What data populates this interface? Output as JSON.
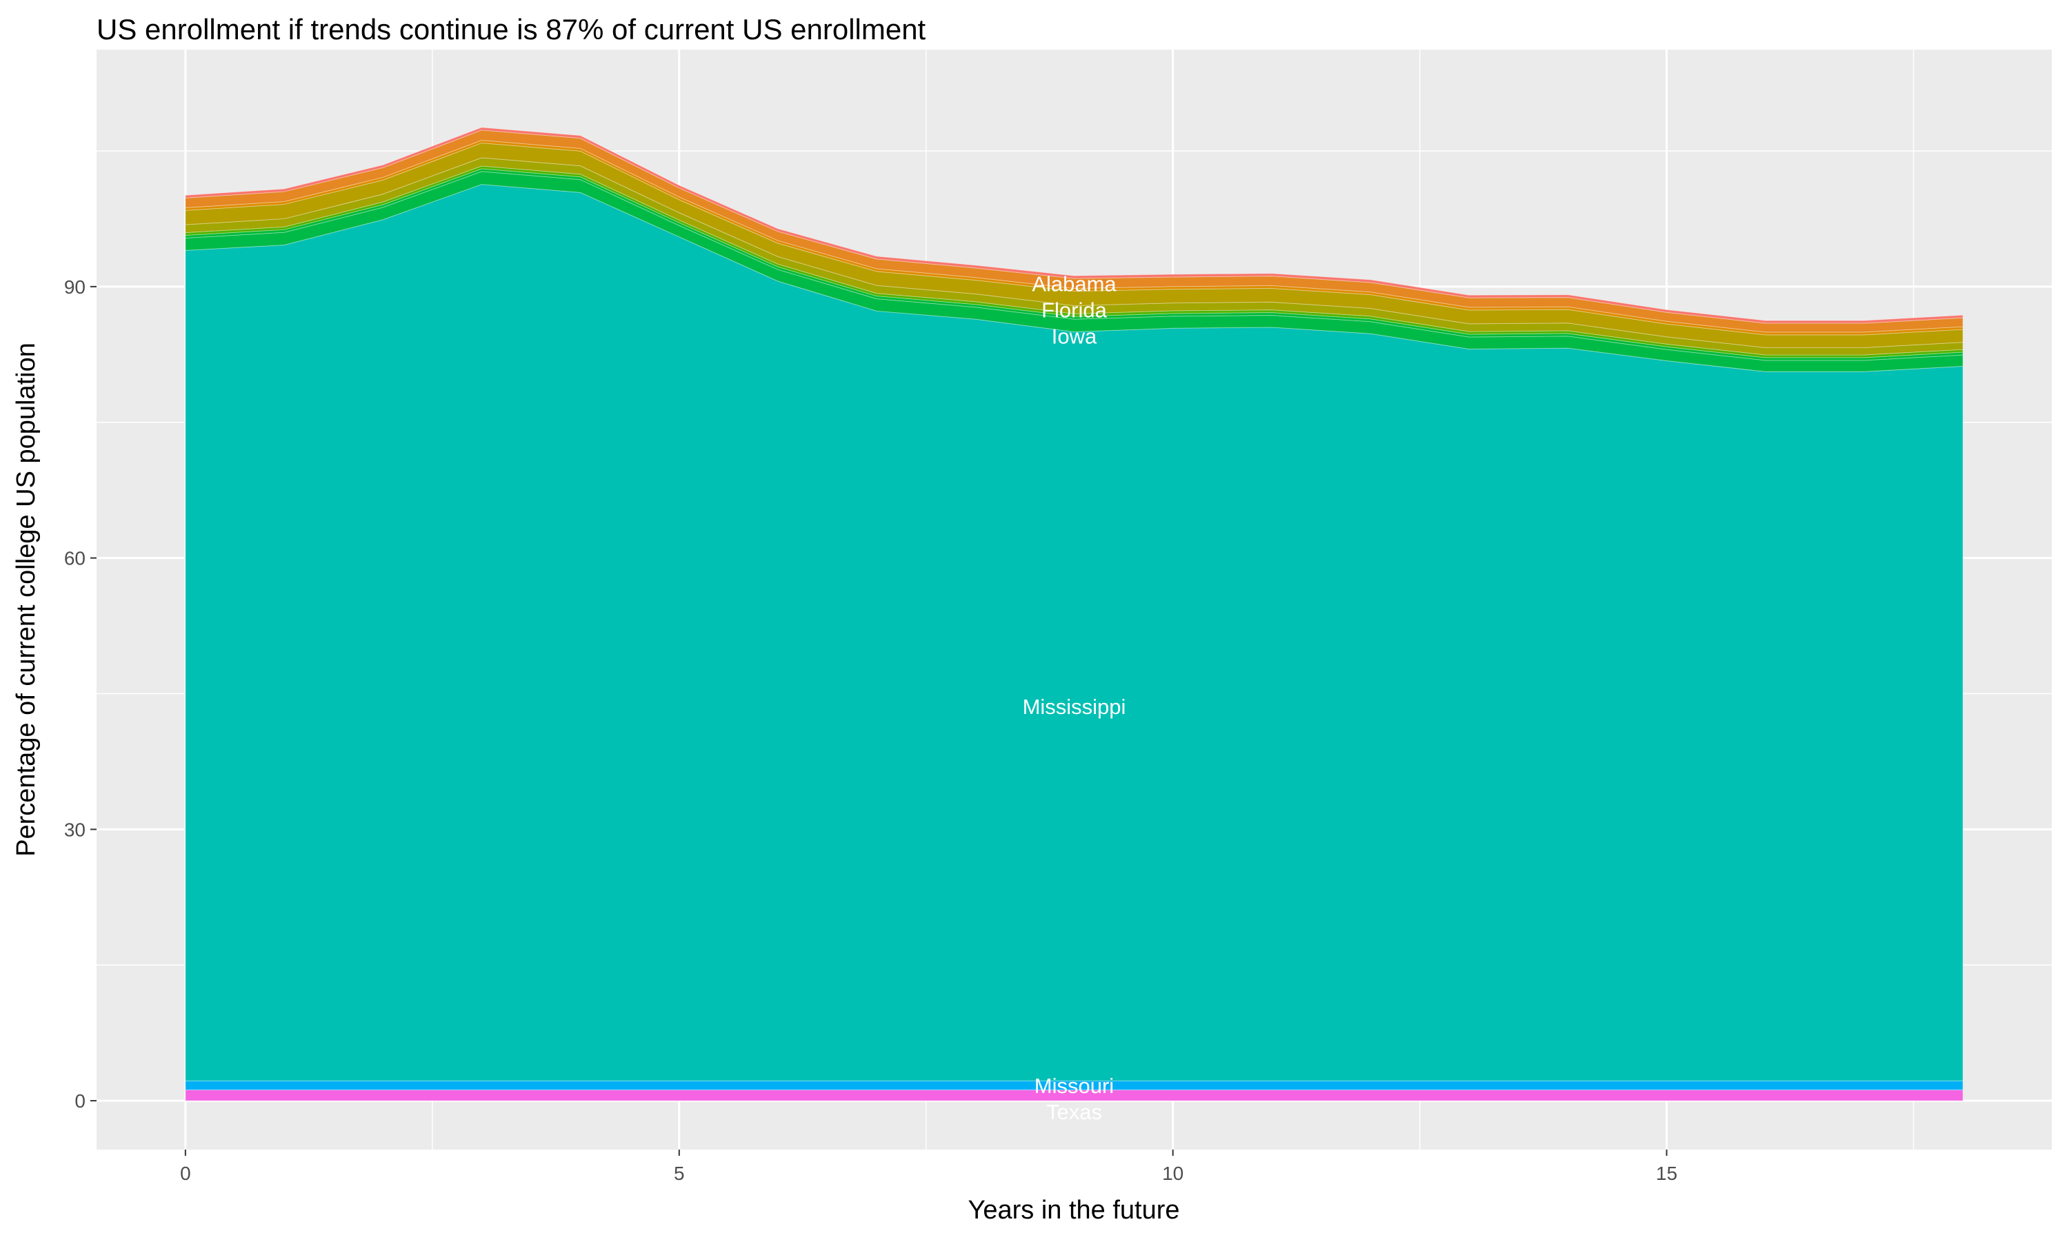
{
  "chart_data": {
    "type": "area",
    "stacked": true,
    "title": "US enrollment if trends continue is 87% of current US enrollment",
    "xlabel": "Years in the future",
    "ylabel": "Percentage of current college US population",
    "xlim": [
      -0.9,
      18.9
    ],
    "ylim": [
      -5.4,
      116.2
    ],
    "xticks": [
      0,
      5,
      10,
      15
    ],
    "yticks": [
      0,
      30,
      60,
      90
    ],
    "grid": true,
    "legend": "none",
    "background": "#EBEBEB",
    "x": [
      0,
      1,
      2,
      3,
      4,
      5,
      6,
      7,
      8,
      9,
      10,
      11,
      12,
      13,
      14,
      15,
      16,
      17,
      18
    ],
    "series": [
      {
        "name": "Texas",
        "color": "#F564E3",
        "values": [
          1.2,
          1.2,
          1.2,
          1.2,
          1.2,
          1.2,
          1.2,
          1.2,
          1.2,
          1.2,
          1.2,
          1.2,
          1.2,
          1.2,
          1.2,
          1.2,
          1.2,
          1.2,
          1.2
        ]
      },
      {
        "name": "Missouri",
        "color": "#00B0F6",
        "values": [
          1.0,
          1.0,
          1.0,
          1.0,
          1.0,
          1.0,
          1.0,
          1.0,
          1.0,
          1.0,
          1.0,
          1.0,
          1.0,
          1.0,
          1.0,
          1.0,
          1.0,
          1.0,
          1.0
        ]
      },
      {
        "name": "Mississippi",
        "color": "#00BFB3",
        "values": [
          91.8,
          92.4,
          95.2,
          99.1,
          98.2,
          93.3,
          88.4,
          85.1,
          84.2,
          82.8,
          83.2,
          83.3,
          82.6,
          80.9,
          81.0,
          79.6,
          78.4,
          78.4,
          79.0
        ]
      },
      {
        "name": "Iowa",
        "color": "#00BA48",
        "values": [
          1.37,
          1.4,
          1.36,
          1.43,
          1.43,
          1.26,
          1.29,
          1.36,
          1.33,
          1.4,
          1.33,
          1.33,
          1.33,
          1.33,
          1.32,
          1.25,
          1.25,
          1.25,
          1.25
        ]
      },
      {
        "color": "#00BA38",
        "values": [
          0.3,
          0.3,
          0.3,
          0.3,
          0.3,
          0.3,
          0.3,
          0.3,
          0.3,
          0.3,
          0.3,
          0.3,
          0.3,
          0.3,
          0.3,
          0.3,
          0.3,
          0.3,
          0.3
        ]
      },
      {
        "color": "#53B400",
        "values": [
          0.3,
          0.3,
          0.3,
          0.3,
          0.3,
          0.3,
          0.3,
          0.3,
          0.3,
          0.3,
          0.3,
          0.3,
          0.3,
          0.3,
          0.3,
          0.3,
          0.3,
          0.3,
          0.3
        ]
      },
      {
        "color": "#A3A500",
        "values": [
          0.88,
          0.9,
          0.87,
          0.92,
          0.92,
          0.81,
          0.83,
          0.87,
          0.86,
          0.9,
          0.86,
          0.86,
          0.86,
          0.86,
          0.85,
          0.8,
          0.8,
          0.8,
          0.8
        ]
      },
      {
        "name": "Florida",
        "color": "#B79F00",
        "values": [
          1.57,
          1.6,
          1.55,
          1.63,
          1.63,
          1.44,
          1.47,
          1.55,
          1.52,
          1.6,
          1.52,
          1.52,
          1.52,
          1.52,
          1.5,
          1.42,
          1.42,
          1.42,
          1.42
        ]
      },
      {
        "color": "#DE8C00",
        "values": [
          0.3,
          0.3,
          0.3,
          0.3,
          0.3,
          0.3,
          0.3,
          0.3,
          0.3,
          0.3,
          0.3,
          0.3,
          0.3,
          0.3,
          0.3,
          0.3,
          0.3,
          0.3,
          0.3
        ]
      },
      {
        "name": "Alabama",
        "color": "#E58723",
        "values": [
          1.08,
          1.1,
          1.07,
          1.12,
          1.12,
          0.99,
          1.01,
          1.07,
          1.05,
          1.1,
          1.05,
          1.05,
          1.05,
          1.05,
          1.03,
          0.98,
          0.98,
          0.98,
          0.98
        ]
      },
      {
        "color": "#F8766D",
        "values": [
          0.3,
          0.3,
          0.3,
          0.3,
          0.3,
          0.3,
          0.3,
          0.3,
          0.3,
          0.3,
          0.3,
          0.3,
          0.3,
          0.3,
          0.3,
          0.3,
          0.3,
          0.3,
          0.3
        ]
      }
    ],
    "series_labels_at_x": 9
  }
}
